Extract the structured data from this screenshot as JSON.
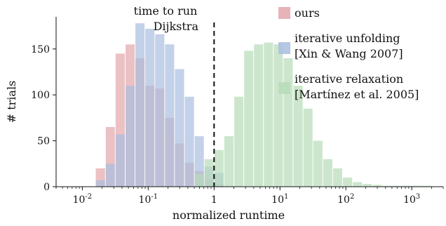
{
  "chart_data": {
    "type": "bar",
    "xscale": "log",
    "xlabel": "normalized runtime",
    "ylabel": "# trials",
    "xlim": [
      0.004,
      3000
    ],
    "ylim": [
      0,
      185
    ],
    "yticks": [
      {
        "value": 0,
        "label": "0"
      },
      {
        "value": 50,
        "label": "50"
      },
      {
        "value": 100,
        "label": "100"
      },
      {
        "value": 150,
        "label": "150"
      }
    ],
    "xticks": [
      {
        "value": 0.01,
        "base": "10",
        "exp": "-2"
      },
      {
        "value": 0.1,
        "base": "10",
        "exp": "-1"
      },
      {
        "value": 1,
        "base": "1",
        "exp": ""
      },
      {
        "value": 10,
        "base": "10",
        "exp": "1"
      },
      {
        "value": 100,
        "base": "10",
        "exp": "2"
      },
      {
        "value": 1000,
        "base": "10",
        "exp": "3"
      }
    ],
    "grid": false,
    "legend_position": "top-right",
    "annotation": {
      "line1": "time to run",
      "line2": "Dijkstra",
      "x": 1
    },
    "series": [
      {
        "name": "ours",
        "color": "#e3a6ab",
        "edges": [
          0.0158,
          0.0224,
          0.0316,
          0.0447,
          0.0631,
          0.0891,
          0.126,
          0.178,
          0.251,
          0.355,
          0.501,
          0.708,
          1.0,
          1.41
        ],
        "values": [
          20,
          65,
          145,
          155,
          140,
          110,
          107,
          75,
          47,
          26,
          17,
          8,
          3
        ]
      },
      {
        "name": "iterative unfolding [Xin & Wang 2007]",
        "legend_line1": "iterative unfolding",
        "legend_line2": "[Xin & Wang 2007]",
        "color": "#a9bddf",
        "edges": [
          0.0158,
          0.0224,
          0.0316,
          0.0447,
          0.0631,
          0.0891,
          0.126,
          0.178,
          0.251,
          0.355,
          0.501,
          0.708,
          1.0,
          1.41
        ],
        "values": [
          7,
          25,
          57,
          110,
          178,
          172,
          166,
          155,
          128,
          98,
          55,
          22,
          15
        ]
      },
      {
        "name": "iterative relaxation [Martínez et al. 2005]",
        "legend_line1": "iterative relaxation",
        "legend_line2": "[Martínez et al. 2005]",
        "color": "#b6dcb8",
        "edges": [
          0.501,
          0.708,
          1.0,
          1.41,
          2.0,
          2.82,
          3.98,
          5.62,
          7.94,
          11.2,
          15.8,
          22.4,
          31.6,
          44.7,
          63.1,
          89.1,
          126,
          178,
          251,
          355,
          501,
          708,
          1000,
          1410,
          2000
        ],
        "values": [
          14,
          30,
          40,
          55,
          98,
          148,
          155,
          157,
          155,
          140,
          110,
          85,
          50,
          30,
          20,
          10,
          5,
          3,
          2,
          1,
          1,
          1,
          1,
          1
        ]
      }
    ]
  }
}
